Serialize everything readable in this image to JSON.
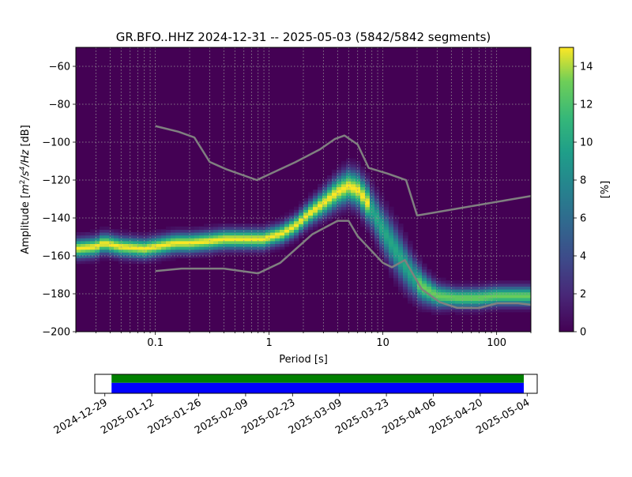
{
  "title": "GR.BFO..HHZ   2024-12-31 -- 2025-05-03  (5842/5842 segments)",
  "xlabel": "Period [s]",
  "ylabel_parts": {
    "prefix": "Amplitude [",
    "m": "m",
    "exp1": "2",
    "mid": "/s",
    "exp2": "4",
    "suffix": "/Hz] [dB]"
  },
  "colorbar_label": "[%]",
  "colors": {
    "background": "#440154",
    "noise_model": "#808080",
    "grid": "#999999",
    "coverage_green": "#008000",
    "coverage_blue": "#0000ff"
  },
  "chart_data": [
    {
      "type": "heatmap",
      "title": "GR.BFO..HHZ   2024-12-31 -- 2025-05-03  (5842/5842 segments)",
      "xlabel": "Period [s]",
      "ylabel": "Amplitude [m2/s4/Hz] [dB]",
      "x_scale": "log",
      "xlim": [
        0.02,
        200
      ],
      "ylim": [
        -200,
        -50
      ],
      "x_ticks": [
        {
          "value": 0.1,
          "label": "0.1"
        },
        {
          "value": 1,
          "label": "1"
        },
        {
          "value": 10,
          "label": "10"
        },
        {
          "value": 100,
          "label": "100"
        }
      ],
      "y_ticks": [
        {
          "value": -60,
          "label": "−60"
        },
        {
          "value": -80,
          "label": "−80"
        },
        {
          "value": -100,
          "label": "−100"
        },
        {
          "value": -120,
          "label": "−120"
        },
        {
          "value": -140,
          "label": "−140"
        },
        {
          "value": -160,
          "label": "−160"
        },
        {
          "value": -180,
          "label": "−180"
        },
        {
          "value": -200,
          "label": "−200"
        }
      ],
      "grid": true,
      "colormap": "viridis",
      "colorbar": {
        "range": [
          0,
          15
        ],
        "ticks": [
          {
            "value": 0,
            "label": "0"
          },
          {
            "value": 2,
            "label": "2"
          },
          {
            "value": 4,
            "label": "4"
          },
          {
            "value": 6,
            "label": "6"
          },
          {
            "value": 8,
            "label": "8"
          },
          {
            "value": 10,
            "label": "10"
          },
          {
            "value": 12,
            "label": "12"
          },
          {
            "value": 14,
            "label": "14"
          }
        ],
        "label": "[%]"
      },
      "mode_curve": {
        "x": [
          0.02,
          0.03,
          0.035,
          0.05,
          0.08,
          0.1,
          0.15,
          0.2,
          0.3,
          0.4,
          0.5,
          0.7,
          0.9,
          1.0,
          1.3,
          1.7,
          2.2,
          3.0,
          4.0,
          5.0,
          6.0,
          7.0,
          8.5,
          10,
          13,
          17,
          22,
          30,
          45,
          70,
          100,
          150,
          200
        ],
        "y": [
          -156,
          -155,
          -153,
          -155,
          -156,
          -155,
          -153,
          -153,
          -152,
          -151,
          -151,
          -151,
          -151,
          -150,
          -148,
          -144,
          -138,
          -132,
          -126,
          -123,
          -125,
          -130,
          -138,
          -146,
          -157,
          -168,
          -176,
          -181,
          -182,
          -182,
          -181,
          -181,
          -181
        ]
      },
      "series": [
        {
          "name": "",
          "x": [
            0.1,
            0.16,
            0.22,
            0.3,
            0.42,
            0.78,
            1.7,
            2.8,
            3.8,
            4.6,
            6.0,
            7.5,
            11,
            16,
            20,
            200
          ],
          "y": [
            -91.5,
            -94.5,
            -97.5,
            -110.4,
            -114.3,
            -120.0,
            -110.6,
            -103.8,
            -98.3,
            -96.5,
            -101.2,
            -113.6,
            -116.6,
            -120.0,
            -138.7,
            -128.4
          ]
        },
        {
          "name": "",
          "x": [
            0.1,
            0.17,
            0.4,
            0.8,
            1.25,
            2.4,
            4.0,
            5.0,
            6.0,
            10,
            12,
            15.6,
            21.9,
            31.6,
            45,
            70,
            101,
            154,
            200
          ],
          "y": [
            -168.0,
            -166.7,
            -166.7,
            -169.2,
            -163.7,
            -148.6,
            -141.5,
            -141.5,
            -149.6,
            -163.7,
            -166.0,
            -162.2,
            -177.5,
            -184.4,
            -187.4,
            -187.5,
            -185.0,
            -185.0,
            -185.8
          ]
        }
      ]
    },
    {
      "type": "bar",
      "title": "",
      "x_tick_labels": [
        "2024-12-29",
        "2025-01-12",
        "2025-01-26",
        "2025-02-09",
        "2025-02-23",
        "2025-03-09",
        "2025-03-23",
        "2025-04-06",
        "2025-04-20",
        "2025-05-04"
      ],
      "xlim": [
        "2024-12-26",
        "2025-05-07"
      ],
      "series": [
        {
          "name": "",
          "color": "#008000",
          "start": "2024-12-31",
          "end": "2025-05-03"
        },
        {
          "name": "",
          "color": "#0000ff",
          "start": "2024-12-31",
          "end": "2025-05-03"
        }
      ]
    }
  ]
}
